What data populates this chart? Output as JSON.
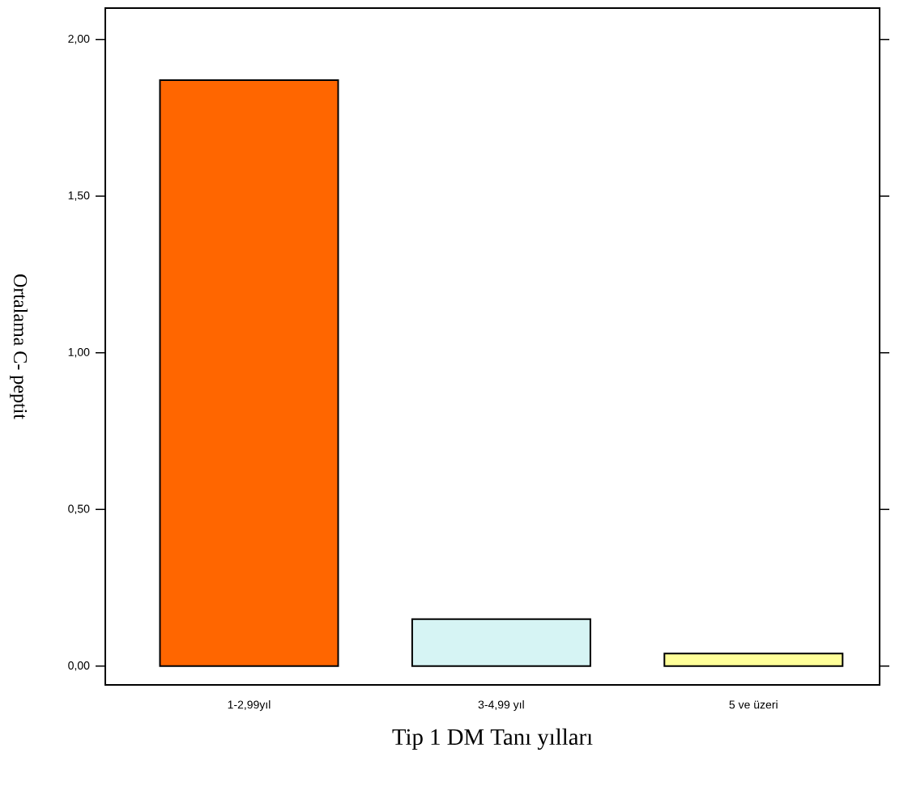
{
  "chart_data": {
    "type": "bar",
    "xlabel": "Tip 1 DM  Tanı yılları",
    "ylabel": "Ortalama C- peptit",
    "categories": [
      "1-2,99yıl",
      "3-4,99 yıl",
      "5 ve üzeri"
    ],
    "values": [
      1.87,
      0.15,
      0.04
    ],
    "colors": [
      "#ff6600",
      "#d6f4f4",
      "#ffff99"
    ],
    "ylim": [
      -0.06,
      2.1
    ],
    "yticks": [
      {
        "value": 0,
        "label": "0,00"
      },
      {
        "value": 0.5,
        "label": "0,50"
      },
      {
        "value": 1,
        "label": "1,00"
      },
      {
        "value": 1.5,
        "label": "1,50"
      },
      {
        "value": 2,
        "label": "2,00"
      }
    ],
    "grid": false
  }
}
